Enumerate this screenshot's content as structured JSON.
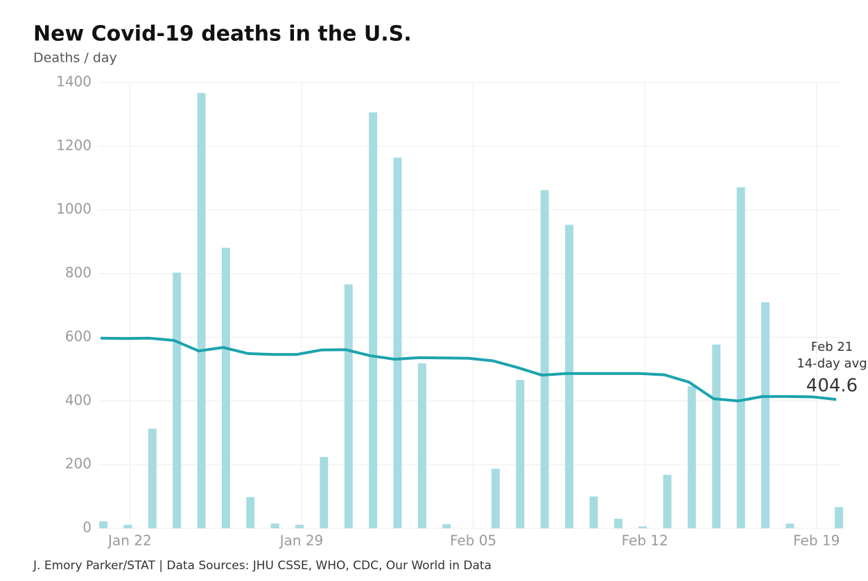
{
  "chart_data": {
    "type": "combo",
    "title": "New Covid-19 deaths in the U.S.",
    "subtitle": "Deaths / day",
    "source": "J. Emory Parker/STAT | Data Sources: JHU CSSE, WHO, CDC, Our World in Data",
    "categories": [
      null,
      "Jan 22",
      null,
      null,
      null,
      null,
      null,
      null,
      "Jan 29",
      null,
      null,
      null,
      null,
      null,
      null,
      "Feb 05",
      null,
      null,
      null,
      null,
      null,
      null,
      "Feb 12",
      null,
      null,
      null,
      null,
      null,
      null,
      "Feb 19",
      null
    ],
    "series": [
      {
        "type": "bar",
        "color": "#a6dce1",
        "values": [
          22,
          11,
          313,
          803,
          1367,
          881,
          98,
          15,
          11,
          224,
          766,
          1306,
          1164,
          518,
          13,
          0,
          187,
          466,
          1062,
          953,
          100,
          30,
          6,
          168,
          446,
          577,
          1071,
          710,
          15,
          0,
          67
        ]
      },
      {
        "type": "line",
        "color": "#1ca3ad",
        "values": [
          597,
          596,
          597,
          590,
          557,
          568,
          549,
          546,
          546,
          560,
          561,
          542,
          531,
          536,
          535,
          534,
          526,
          505,
          481,
          486,
          486,
          486,
          486,
          482,
          459,
          407,
          400,
          414,
          414,
          413,
          404.6
        ]
      }
    ],
    "annotation": {
      "date": "Feb 21",
      "label": "14-day avg"
    },
    "ylim": [
      0,
      1400
    ],
    "yticks": [
      0,
      200,
      400,
      600,
      800,
      1000,
      1200,
      1400
    ],
    "grid": true
  }
}
